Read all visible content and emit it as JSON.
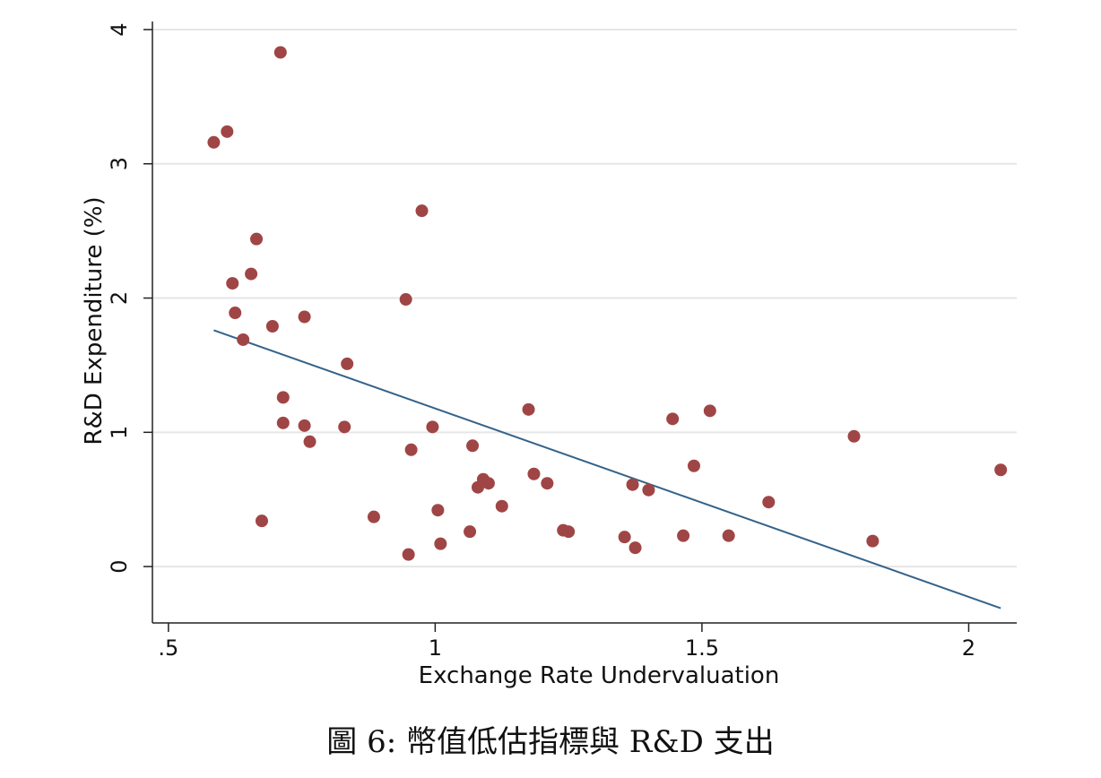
{
  "caption": "圖 6: 幣值低估指標與 R&D 支出",
  "chart_data": {
    "type": "scatter",
    "xlabel": "Exchange Rate Undervaluation",
    "ylabel": "R&D Expenditure (%)",
    "xlim": [
      0.47,
      2.09
    ],
    "ylim": [
      -0.42,
      4.06
    ],
    "x_ticks": [
      0.5,
      1,
      1.5,
      2
    ],
    "x_tick_labels": [
      ".5",
      "1",
      "1.5",
      "2"
    ],
    "y_ticks": [
      0,
      1,
      2,
      3,
      4
    ],
    "y_tick_labels": [
      "0",
      "1",
      "2",
      "3",
      "4"
    ],
    "grid": "horizontal",
    "marker_color": "#a04545",
    "fit_line_color": "#34638a",
    "points": [
      [
        0.585,
        3.16
      ],
      [
        0.61,
        3.24
      ],
      [
        0.71,
        3.83
      ],
      [
        0.665,
        2.44
      ],
      [
        0.655,
        2.18
      ],
      [
        0.62,
        2.11
      ],
      [
        0.625,
        1.89
      ],
      [
        0.64,
        1.69
      ],
      [
        0.695,
        1.79
      ],
      [
        0.755,
        1.86
      ],
      [
        0.835,
        1.51
      ],
      [
        0.975,
        2.65
      ],
      [
        0.945,
        1.99
      ],
      [
        0.715,
        1.26
      ],
      [
        0.715,
        1.07
      ],
      [
        0.755,
        1.05
      ],
      [
        0.765,
        0.93
      ],
      [
        0.83,
        1.04
      ],
      [
        0.675,
        0.34
      ],
      [
        0.885,
        0.37
      ],
      [
        0.95,
        0.09
      ],
      [
        0.955,
        0.87
      ],
      [
        0.995,
        1.04
      ],
      [
        1.005,
        0.42
      ],
      [
        1.01,
        0.17
      ],
      [
        1.065,
        0.26
      ],
      [
        1.07,
        0.9
      ],
      [
        1.08,
        0.59
      ],
      [
        1.09,
        0.65
      ],
      [
        1.1,
        0.62
      ],
      [
        1.125,
        0.45
      ],
      [
        1.175,
        1.17
      ],
      [
        1.185,
        0.69
      ],
      [
        1.21,
        0.62
      ],
      [
        1.24,
        0.27
      ],
      [
        1.25,
        0.26
      ],
      [
        1.355,
        0.22
      ],
      [
        1.37,
        0.61
      ],
      [
        1.375,
        0.14
      ],
      [
        1.4,
        0.57
      ],
      [
        1.445,
        1.1
      ],
      [
        1.465,
        0.23
      ],
      [
        1.485,
        0.75
      ],
      [
        1.515,
        1.16
      ],
      [
        1.55,
        0.23
      ],
      [
        1.625,
        0.48
      ],
      [
        1.785,
        0.97
      ],
      [
        1.82,
        0.19
      ],
      [
        2.06,
        0.72
      ]
    ],
    "fit_line": [
      [
        0.585,
        1.76
      ],
      [
        2.06,
        -0.31
      ]
    ]
  }
}
